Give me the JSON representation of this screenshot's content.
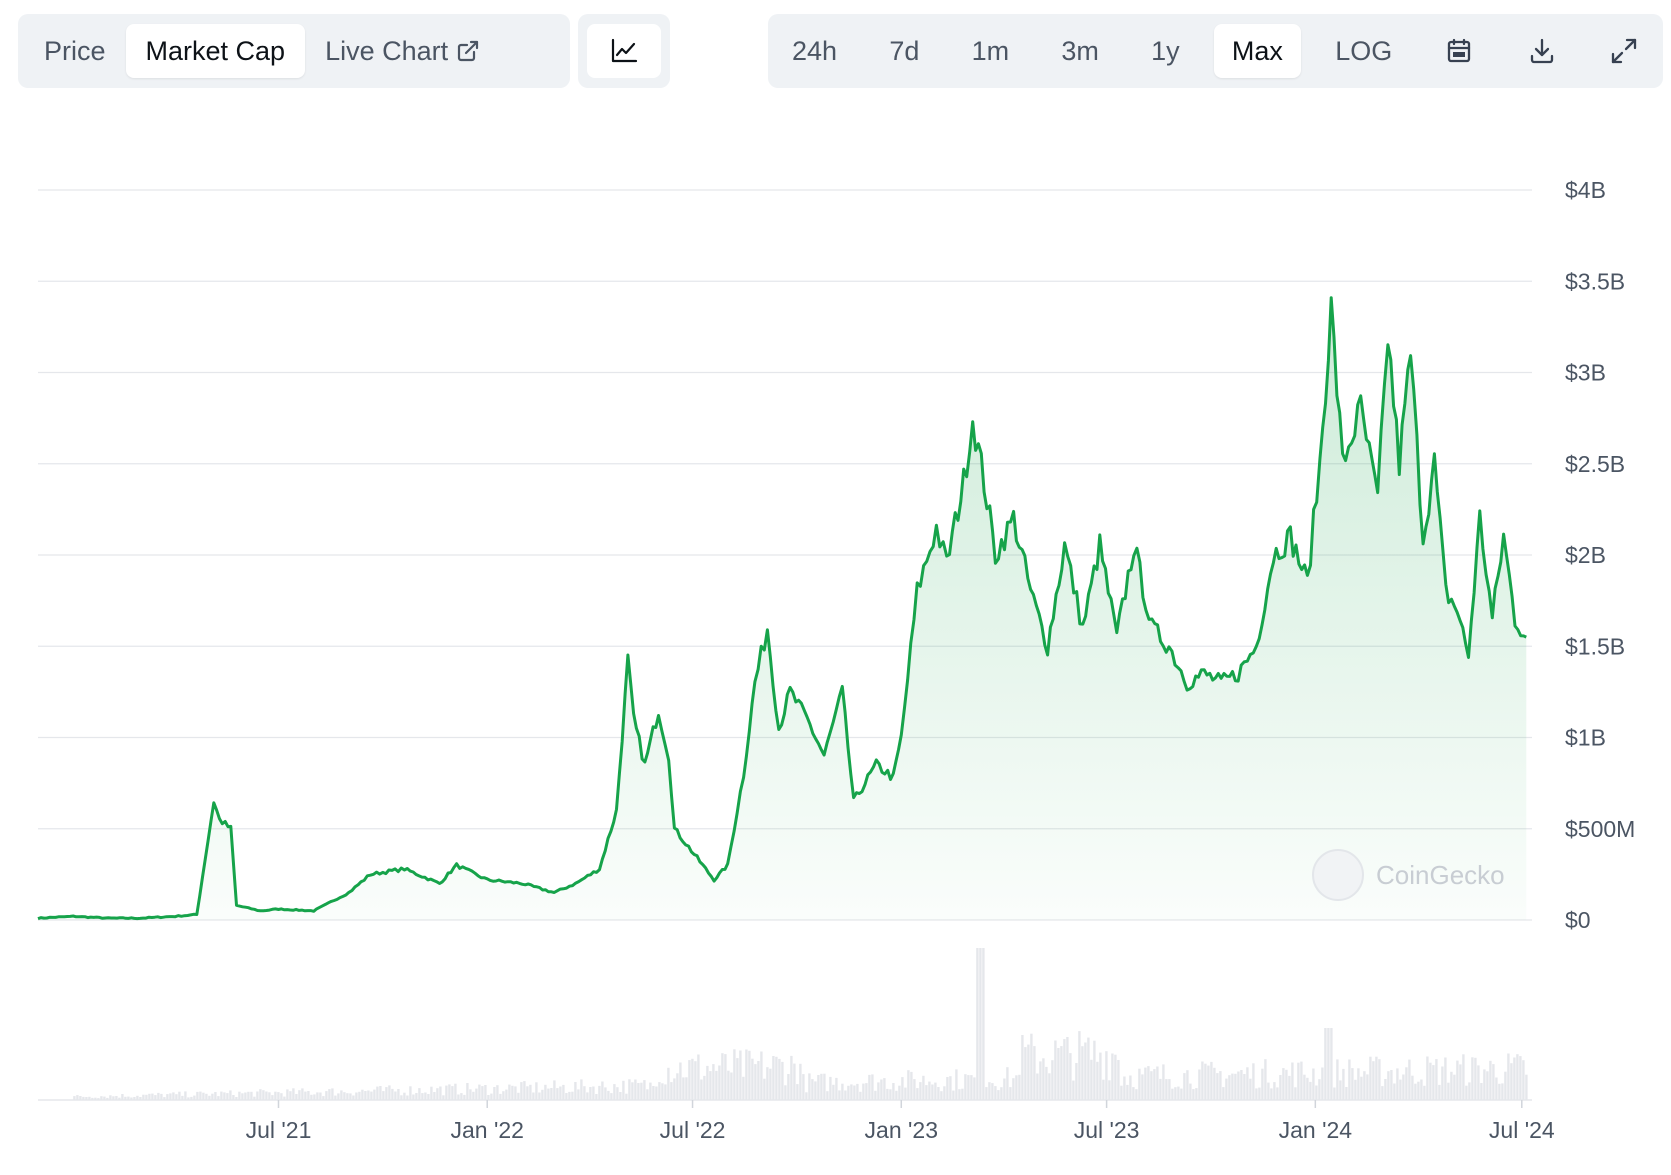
{
  "tabs": [
    {
      "label": "Price",
      "active": false
    },
    {
      "label": "Market Cap",
      "active": true
    },
    {
      "label": "Live Chart",
      "active": false
    }
  ],
  "chart_type_icon": "line-chart-icon",
  "ranges": [
    {
      "label": "24h",
      "active": false
    },
    {
      "label": "7d",
      "active": false
    },
    {
      "label": "1m",
      "active": false
    },
    {
      "label": "3m",
      "active": false
    },
    {
      "label": "1y",
      "active": false
    },
    {
      "label": "Max",
      "active": true
    },
    {
      "label": "LOG",
      "active": false
    }
  ],
  "toolbar_icons": [
    "calendar-icon",
    "download-icon",
    "fullscreen-icon"
  ],
  "watermark": "CoinGecko",
  "colors": {
    "line": "#16a34a",
    "volume": "#e5e7eb",
    "grid": "#e5e7eb"
  },
  "chart_data": {
    "type": "area",
    "title": "",
    "xlabel": "",
    "ylabel": "",
    "y_unit": "USD billions",
    "ylim": [
      0,
      4
    ],
    "yticks": [
      0,
      0.5,
      1,
      1.5,
      2,
      2.5,
      3,
      3.5,
      4
    ],
    "ytick_labels": [
      "$0",
      "$500M",
      "$1B",
      "$1.5B",
      "$2B",
      "$2.5B",
      "$3B",
      "$3.5B",
      "$4B"
    ],
    "xlim": [
      "2020-12-01",
      "2024-07-10"
    ],
    "xticks": [
      "2021-07-01",
      "2022-01-01",
      "2022-07-01",
      "2023-01-01",
      "2023-07-01",
      "2024-01-01",
      "2024-07-01"
    ],
    "xtick_labels": [
      "Jul '21",
      "Jan '22",
      "Jul '22",
      "Jan '23",
      "Jul '23",
      "Jan '24",
      "Jul '24"
    ],
    "grid": true,
    "legend": "none",
    "series": [
      {
        "values": [
          [
            "2020-12-01",
            0.01
          ],
          [
            "2021-01-01",
            0.02
          ],
          [
            "2021-02-01",
            0.01
          ],
          [
            "2021-03-01",
            0.01
          ],
          [
            "2021-04-01",
            0.02
          ],
          [
            "2021-04-20",
            0.03
          ],
          [
            "2021-05-05",
            0.65
          ],
          [
            "2021-05-10",
            0.55
          ],
          [
            "2021-05-20",
            0.5
          ],
          [
            "2021-05-25",
            0.08
          ],
          [
            "2021-06-15",
            0.05
          ],
          [
            "2021-07-01",
            0.06
          ],
          [
            "2021-08-01",
            0.05
          ],
          [
            "2021-09-01",
            0.15
          ],
          [
            "2021-09-20",
            0.25
          ],
          [
            "2021-10-20",
            0.28
          ],
          [
            "2021-11-20",
            0.2
          ],
          [
            "2021-12-05",
            0.3
          ],
          [
            "2022-01-01",
            0.22
          ],
          [
            "2022-02-01",
            0.2
          ],
          [
            "2022-03-01",
            0.15
          ],
          [
            "2022-03-20",
            0.2
          ],
          [
            "2022-04-10",
            0.28
          ],
          [
            "2022-04-25",
            0.6
          ],
          [
            "2022-05-05",
            1.42
          ],
          [
            "2022-05-10",
            1.1
          ],
          [
            "2022-05-20",
            0.85
          ],
          [
            "2022-06-01",
            1.15
          ],
          [
            "2022-06-10",
            0.9
          ],
          [
            "2022-06-15",
            0.5
          ],
          [
            "2022-06-25",
            0.42
          ],
          [
            "2022-07-10",
            0.3
          ],
          [
            "2022-07-20",
            0.22
          ],
          [
            "2022-08-01",
            0.3
          ],
          [
            "2022-08-15",
            0.8
          ],
          [
            "2022-08-25",
            1.3
          ],
          [
            "2022-09-05",
            1.6
          ],
          [
            "2022-09-15",
            1.05
          ],
          [
            "2022-09-25",
            1.25
          ],
          [
            "2022-10-10",
            1.1
          ],
          [
            "2022-10-25",
            0.9
          ],
          [
            "2022-11-10",
            1.25
          ],
          [
            "2022-11-20",
            0.65
          ],
          [
            "2022-12-10",
            0.85
          ],
          [
            "2022-12-25",
            0.78
          ],
          [
            "2023-01-01",
            1.0
          ],
          [
            "2023-01-15",
            1.8
          ],
          [
            "2023-02-01",
            2.15
          ],
          [
            "2023-02-10",
            1.95
          ],
          [
            "2023-02-25",
            2.4
          ],
          [
            "2023-03-05",
            2.75
          ],
          [
            "2023-03-15",
            2.4
          ],
          [
            "2023-03-25",
            2.0
          ],
          [
            "2023-04-10",
            2.2
          ],
          [
            "2023-04-25",
            1.8
          ],
          [
            "2023-05-10",
            1.5
          ],
          [
            "2023-05-25",
            2.05
          ],
          [
            "2023-06-10",
            1.6
          ],
          [
            "2023-06-25",
            2.05
          ],
          [
            "2023-07-10",
            1.55
          ],
          [
            "2023-07-25",
            2.05
          ],
          [
            "2023-08-10",
            1.6
          ],
          [
            "2023-08-25",
            1.5
          ],
          [
            "2023-09-10",
            1.3
          ],
          [
            "2023-09-25",
            1.35
          ],
          [
            "2023-10-10",
            1.3
          ],
          [
            "2023-10-25",
            1.35
          ],
          [
            "2023-11-10",
            1.5
          ],
          [
            "2023-11-25",
            2.0
          ],
          [
            "2023-12-10",
            2.1
          ],
          [
            "2023-12-25",
            1.85
          ],
          [
            "2024-01-05",
            2.5
          ],
          [
            "2024-01-15",
            3.35
          ],
          [
            "2024-01-25",
            2.5
          ],
          [
            "2024-02-10",
            2.8
          ],
          [
            "2024-02-25",
            2.3
          ],
          [
            "2024-03-05",
            3.2
          ],
          [
            "2024-03-15",
            2.5
          ],
          [
            "2024-03-25",
            3.1
          ],
          [
            "2024-04-05",
            2.1
          ],
          [
            "2024-04-15",
            2.5
          ],
          [
            "2024-04-25",
            1.8
          ],
          [
            "2024-05-05",
            1.7
          ],
          [
            "2024-05-15",
            1.45
          ],
          [
            "2024-05-25",
            2.2
          ],
          [
            "2024-06-05",
            1.65
          ],
          [
            "2024-06-15",
            2.1
          ],
          [
            "2024-06-25",
            1.65
          ],
          [
            "2024-07-05",
            1.55
          ]
        ]
      }
    ]
  }
}
